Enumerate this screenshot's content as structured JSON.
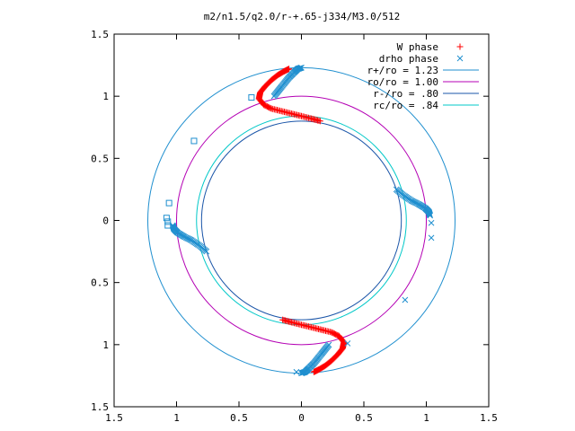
{
  "chart_data": {
    "type": "scatter",
    "title": "m2/n1.5/q2.0/r-+.65-j334/M3.0/512",
    "xlim": [
      -1.5,
      1.5
    ],
    "ylim": [
      -1.5,
      1.5
    ],
    "x_ticks": [
      {
        "value": -1.5,
        "label": "1.5"
      },
      {
        "value": -1.0,
        "label": "1"
      },
      {
        "value": -0.5,
        "label": "0.5"
      },
      {
        "value": 0.0,
        "label": "0"
      },
      {
        "value": 0.5,
        "label": "0.5"
      },
      {
        "value": 1.0,
        "label": "1"
      },
      {
        "value": 1.5,
        "label": "1.5"
      }
    ],
    "y_ticks": [
      {
        "value": 1.5,
        "label": "1.5"
      },
      {
        "value": 1.0,
        "label": "1"
      },
      {
        "value": 0.5,
        "label": "0.5"
      },
      {
        "value": 0.0,
        "label": "0"
      },
      {
        "value": -0.5,
        "label": "0.5"
      },
      {
        "value": -1.0,
        "label": "1"
      },
      {
        "value": -1.5,
        "label": "1.5"
      }
    ],
    "grid": false,
    "legend_position": "top-right",
    "circles": [
      {
        "name": "r+/ro = 1.23",
        "radius": 1.23,
        "color": "#1f8fcf"
      },
      {
        "name": "ro/ro = 1.00",
        "radius": 1.0,
        "color": "#b400b4"
      },
      {
        "name": "r-/ro = .80",
        "radius": 0.8,
        "color": "#1a55a8"
      },
      {
        "name": "rc/ro = .84",
        "radius": 0.84,
        "color": "#00c8c8"
      }
    ],
    "series": [
      {
        "name": "W phase",
        "marker": "plus",
        "color": "#ff0000",
        "arms": [
          {
            "points": [
              [
                0.15,
                0.8
              ],
              [
                0.08,
                0.82
              ],
              [
                0.0,
                0.84
              ],
              [
                -0.08,
                0.86
              ],
              [
                -0.16,
                0.88
              ],
              [
                -0.24,
                0.9
              ],
              [
                -0.3,
                0.93
              ],
              [
                -0.34,
                0.98
              ],
              [
                -0.33,
                1.03
              ],
              [
                -0.29,
                1.08
              ],
              [
                -0.24,
                1.13
              ],
              [
                -0.19,
                1.17
              ],
              [
                -0.14,
                1.2
              ],
              [
                -0.1,
                1.22
              ]
            ]
          },
          {
            "points": [
              [
                -0.15,
                -0.8
              ],
              [
                -0.08,
                -0.82
              ],
              [
                0.0,
                -0.84
              ],
              [
                0.08,
                -0.86
              ],
              [
                0.16,
                -0.88
              ],
              [
                0.24,
                -0.9
              ],
              [
                0.3,
                -0.93
              ],
              [
                0.34,
                -0.98
              ],
              [
                0.33,
                -1.03
              ],
              [
                0.29,
                -1.08
              ],
              [
                0.24,
                -1.13
              ],
              [
                0.19,
                -1.17
              ],
              [
                0.14,
                -1.2
              ],
              [
                0.1,
                -1.22
              ]
            ]
          }
        ]
      },
      {
        "name": "drho phase",
        "marker": "cross",
        "color": "#1f8fcf",
        "arms": [
          {
            "points": [
              [
                -0.22,
                1.0
              ],
              [
                -0.18,
                1.05
              ],
              [
                -0.14,
                1.1
              ],
              [
                -0.1,
                1.15
              ],
              [
                -0.06,
                1.19
              ],
              [
                -0.03,
                1.22
              ],
              [
                0.0,
                1.23
              ]
            ]
          },
          {
            "points": [
              [
                0.22,
                -1.0
              ],
              [
                0.18,
                -1.05
              ],
              [
                0.14,
                -1.1
              ],
              [
                0.1,
                -1.15
              ],
              [
                0.06,
                -1.19
              ],
              [
                0.03,
                -1.22
              ],
              [
                0.0,
                -1.23
              ]
            ]
          },
          {
            "points": [
              [
                0.76,
                0.25
              ],
              [
                0.82,
                0.2
              ],
              [
                0.88,
                0.16
              ],
              [
                0.94,
                0.13
              ],
              [
                0.99,
                0.1
              ],
              [
                1.02,
                0.07
              ],
              [
                1.03,
                0.04
              ]
            ]
          },
          {
            "points": [
              [
                -0.76,
                -0.25
              ],
              [
                -0.82,
                -0.2
              ],
              [
                -0.88,
                -0.16
              ],
              [
                -0.94,
                -0.13
              ],
              [
                -0.99,
                -0.1
              ],
              [
                -1.02,
                -0.07
              ],
              [
                -1.03,
                -0.04
              ]
            ]
          }
        ],
        "outliers_cross": [
          [
            1.04,
            -0.02
          ],
          [
            1.04,
            -0.14
          ],
          [
            0.83,
            -0.64
          ],
          [
            0.37,
            -0.99
          ],
          [
            -0.04,
            -1.22
          ]
        ],
        "outliers_square": [
          [
            -0.4,
            0.99
          ],
          [
            -0.86,
            0.64
          ],
          [
            -1.06,
            0.14
          ],
          [
            -1.08,
            0.02
          ],
          [
            -1.07,
            -0.01
          ],
          [
            -1.07,
            -0.04
          ]
        ]
      }
    ]
  }
}
